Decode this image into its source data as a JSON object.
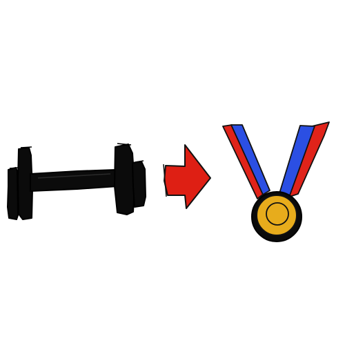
{
  "scene": {
    "icons": [
      {
        "name": "dumbbell-icon"
      },
      {
        "name": "right-arrow-icon"
      },
      {
        "name": "medal-icon"
      }
    ]
  },
  "colors": {
    "ink": "#0b0b0b",
    "arrow": "#de1f14",
    "ribbon_blue": "#2b4fe3",
    "ribbon_red": "#e0231a",
    "medal_gold": "#e7ac1c",
    "background": "#ffffff"
  }
}
